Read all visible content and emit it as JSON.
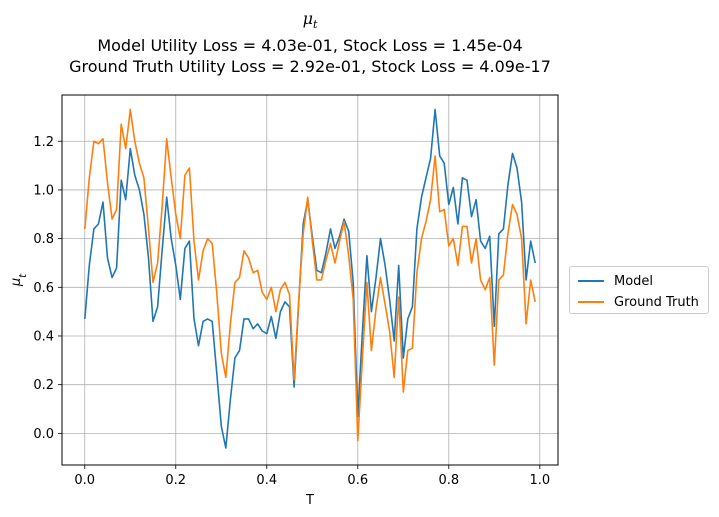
{
  "title": {
    "symbol": "μ",
    "symbol_sub": "t",
    "line2": "Model Utility Loss = 4.03e-01, Stock Loss = 1.45e-04",
    "line3": "Ground Truth Utility Loss = 2.92e-01, Stock Loss = 4.09e-17"
  },
  "colors": {
    "model": "#1f77b4",
    "ground_truth": "#ff7f0e",
    "grid": "#b0b0b0"
  },
  "chart_data": {
    "type": "line",
    "xlabel": "T",
    "ylabel": "μ_t",
    "xlim": [
      -0.05,
      1.04
    ],
    "ylim": [
      -0.13,
      1.39
    ],
    "xticks": [
      0.0,
      0.2,
      0.4,
      0.6,
      0.8,
      1.0
    ],
    "xtick_labels": [
      "0.0",
      "0.2",
      "0.4",
      "0.6",
      "0.8",
      "1.0"
    ],
    "yticks": [
      0.0,
      0.2,
      0.4,
      0.6,
      0.8,
      1.0,
      1.2
    ],
    "ytick_labels": [
      "0.0",
      "0.2",
      "0.4",
      "0.6",
      "0.8",
      "1.0",
      "1.2"
    ],
    "grid": true,
    "legend_position": "center-right outside plot",
    "x": [
      0.0,
      0.01,
      0.02,
      0.03,
      0.04,
      0.05,
      0.06,
      0.07,
      0.08,
      0.09,
      0.1,
      0.11,
      0.12,
      0.13,
      0.14,
      0.15,
      0.16,
      0.17,
      0.18,
      0.19,
      0.2,
      0.21,
      0.22,
      0.23,
      0.24,
      0.25,
      0.26,
      0.27,
      0.28,
      0.29,
      0.3,
      0.31,
      0.32,
      0.33,
      0.34,
      0.35,
      0.36,
      0.37,
      0.38,
      0.39,
      0.4,
      0.41,
      0.42,
      0.43,
      0.44,
      0.45,
      0.46,
      0.47,
      0.48,
      0.49,
      0.5,
      0.51,
      0.52,
      0.53,
      0.54,
      0.55,
      0.56,
      0.57,
      0.58,
      0.59,
      0.6,
      0.61,
      0.62,
      0.63,
      0.64,
      0.65,
      0.66,
      0.67,
      0.68,
      0.69,
      0.7,
      0.71,
      0.72,
      0.73,
      0.74,
      0.75,
      0.76,
      0.77,
      0.78,
      0.79,
      0.8,
      0.81,
      0.82,
      0.83,
      0.84,
      0.85,
      0.86,
      0.87,
      0.88,
      0.89,
      0.9,
      0.91,
      0.92,
      0.93,
      0.94,
      0.95,
      0.96,
      0.97,
      0.98,
      0.99
    ],
    "series": [
      {
        "name": "Model",
        "values": [
          0.47,
          0.69,
          0.84,
          0.86,
          0.95,
          0.72,
          0.64,
          0.68,
          1.04,
          0.96,
          1.17,
          1.06,
          1.0,
          0.9,
          0.72,
          0.46,
          0.52,
          0.75,
          0.97,
          0.8,
          0.69,
          0.55,
          0.76,
          0.79,
          0.47,
          0.36,
          0.46,
          0.47,
          0.46,
          0.25,
          0.03,
          -0.06,
          0.14,
          0.31,
          0.34,
          0.47,
          0.47,
          0.43,
          0.45,
          0.42,
          0.41,
          0.48,
          0.39,
          0.5,
          0.54,
          0.52,
          0.19,
          0.53,
          0.86,
          0.96,
          0.81,
          0.67,
          0.66,
          0.74,
          0.84,
          0.76,
          0.81,
          0.88,
          0.83,
          0.62,
          0.07,
          0.41,
          0.73,
          0.5,
          0.64,
          0.8,
          0.69,
          0.55,
          0.38,
          0.69,
          0.31,
          0.47,
          0.52,
          0.84,
          0.97,
          1.05,
          1.13,
          1.33,
          1.14,
          1.11,
          0.94,
          1.01,
          0.86,
          1.05,
          1.04,
          0.89,
          0.96,
          0.79,
          0.76,
          0.81,
          0.44,
          0.82,
          0.84,
          1.02,
          1.15,
          1.09,
          0.95,
          0.63,
          0.79,
          0.7
        ]
      },
      {
        "name": "Ground Truth",
        "values": [
          0.84,
          1.05,
          1.2,
          1.19,
          1.21,
          1.03,
          0.88,
          0.92,
          1.27,
          1.17,
          1.33,
          1.2,
          1.11,
          1.05,
          0.84,
          0.62,
          0.7,
          0.93,
          1.21,
          1.05,
          0.9,
          0.8,
          1.06,
          1.09,
          0.79,
          0.63,
          0.75,
          0.8,
          0.78,
          0.58,
          0.33,
          0.23,
          0.45,
          0.62,
          0.64,
          0.75,
          0.72,
          0.66,
          0.67,
          0.58,
          0.55,
          0.6,
          0.5,
          0.59,
          0.62,
          0.57,
          0.22,
          0.54,
          0.82,
          0.97,
          0.79,
          0.63,
          0.63,
          0.71,
          0.78,
          0.7,
          0.79,
          0.87,
          0.73,
          0.55,
          -0.03,
          0.3,
          0.62,
          0.34,
          0.51,
          0.64,
          0.53,
          0.42,
          0.23,
          0.56,
          0.17,
          0.34,
          0.35,
          0.66,
          0.8,
          0.87,
          0.96,
          1.14,
          0.91,
          0.92,
          0.77,
          0.8,
          0.69,
          0.85,
          0.85,
          0.7,
          0.8,
          0.63,
          0.59,
          0.64,
          0.28,
          0.63,
          0.65,
          0.82,
          0.94,
          0.9,
          0.8,
          0.45,
          0.63,
          0.54
        ]
      }
    ]
  }
}
